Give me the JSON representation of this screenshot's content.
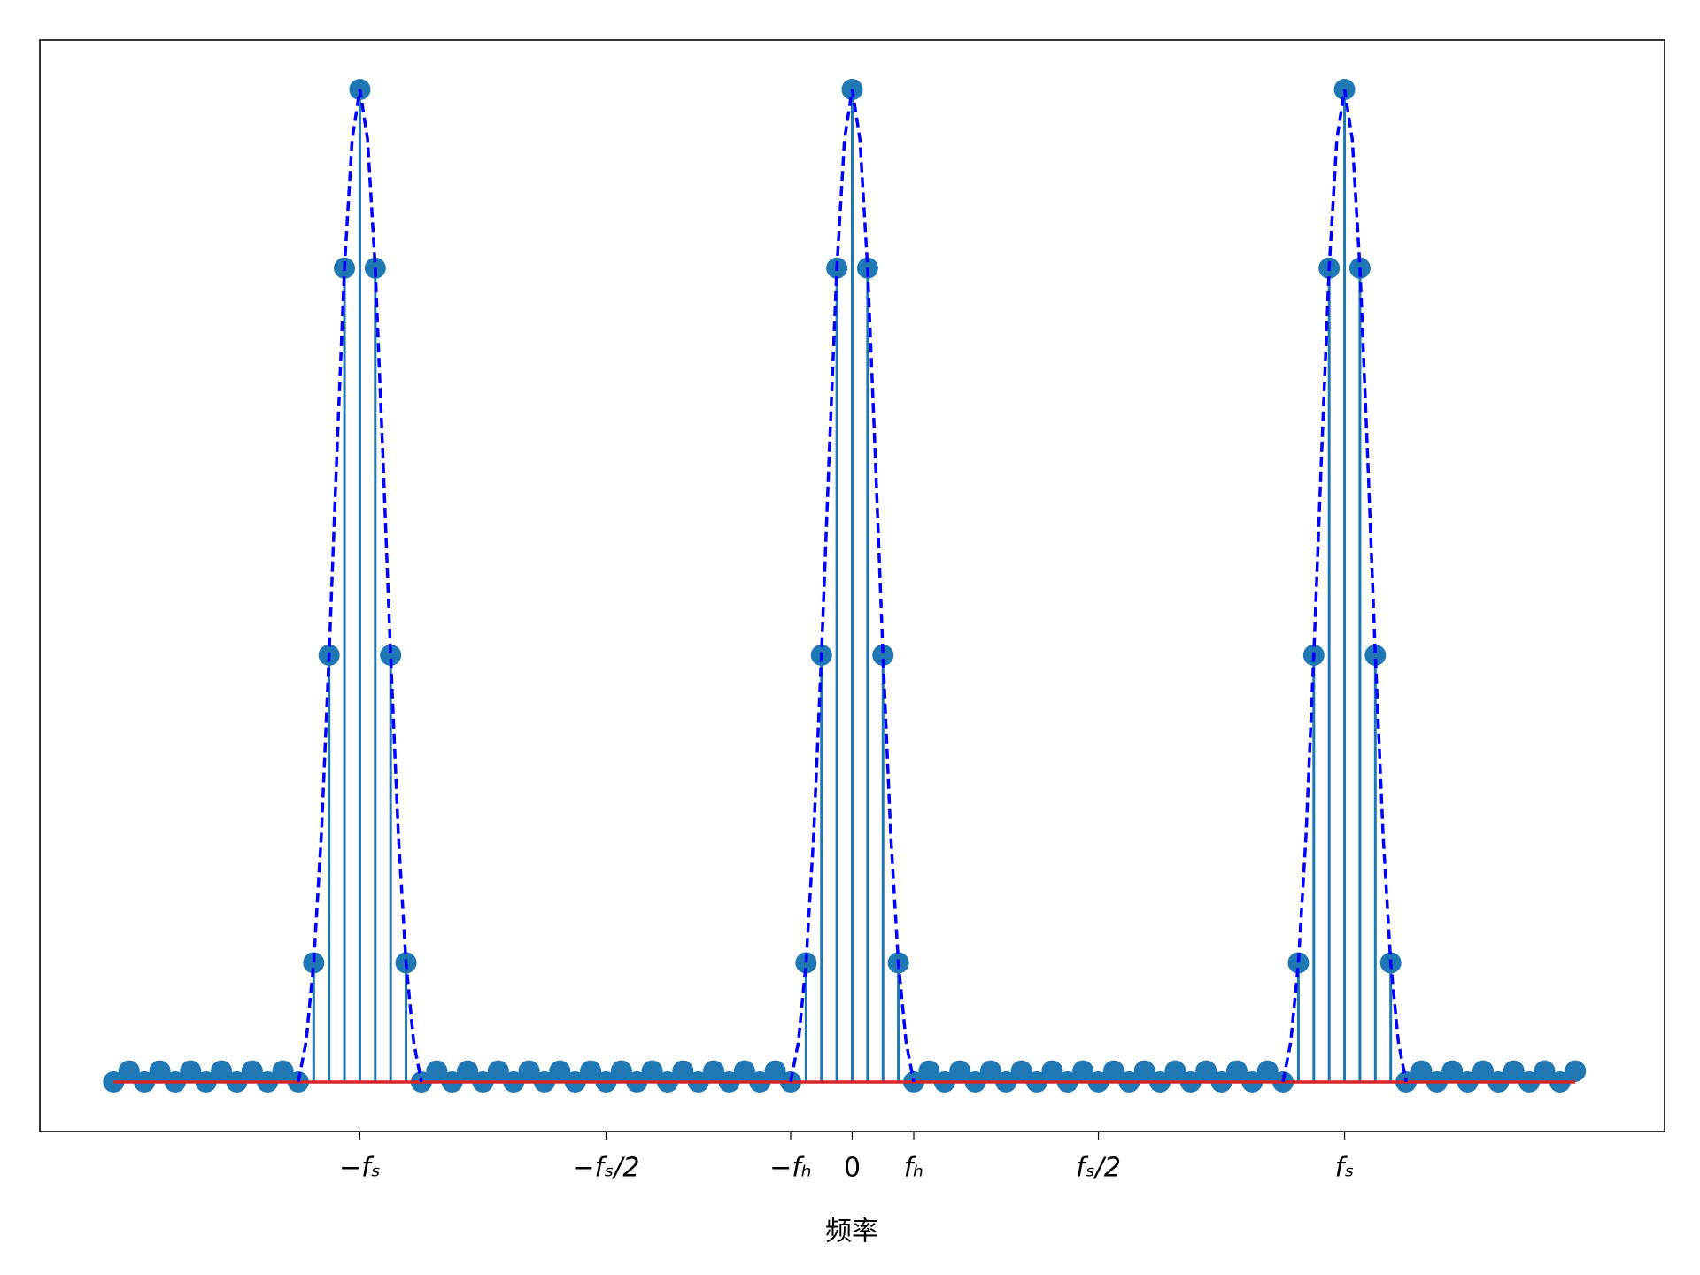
{
  "chart_data": {
    "type": "stem",
    "xlabel": "频率",
    "stems": {
      "color": "#1f77b4",
      "baseline_color": "#d62728",
      "x": [
        -48,
        -47,
        -46,
        -45,
        -44,
        -43,
        -42,
        -41,
        -40,
        -39,
        -38,
        -37,
        -36,
        -35,
        -34,
        -33,
        -32,
        -31,
        -30,
        -29,
        -28,
        -27,
        -26,
        -25,
        -24,
        -23,
        -22,
        -21,
        -20,
        -19,
        -18,
        -17,
        -16,
        -15,
        -14,
        -13,
        -12,
        -11,
        -10,
        -9,
        -8,
        -7,
        -6,
        -5,
        -4,
        -3,
        -2,
        -1,
        0,
        1,
        2,
        3,
        4,
        5,
        6,
        7,
        8,
        9,
        10,
        11,
        12,
        13,
        14,
        15,
        16,
        17,
        18,
        19,
        20,
        21,
        22,
        23,
        24,
        25,
        26,
        27,
        28,
        29,
        30,
        31,
        32,
        33,
        34,
        35,
        36,
        37,
        38,
        39,
        40,
        41,
        42,
        43,
        44,
        45,
        46,
        47
      ],
      "values": [
        0,
        0.011,
        0,
        0.011,
        0,
        0.011,
        0,
        0.011,
        0,
        0.011,
        0,
        0.011,
        0,
        0.12,
        0.43,
        0.82,
        1,
        0.82,
        0.43,
        0.12,
        0,
        0.011,
        0,
        0.011,
        0,
        0.011,
        0,
        0.011,
        0,
        0.011,
        0,
        0.011,
        0,
        0.011,
        0,
        0.011,
        0,
        0.011,
        0,
        0.011,
        0,
        0.011,
        0,
        0.011,
        0,
        0.12,
        0.43,
        0.82,
        1,
        0.82,
        0.43,
        0.12,
        0,
        0.011,
        0,
        0.011,
        0,
        0.011,
        0,
        0.011,
        0,
        0.011,
        0,
        0.011,
        0,
        0.011,
        0,
        0.011,
        0,
        0.011,
        0,
        0.011,
        0,
        0.011,
        0,
        0.011,
        0,
        0.12,
        0.43,
        0.82,
        1,
        0.82,
        0.43,
        0.12,
        0,
        0.011,
        0,
        0.011,
        0,
        0.011,
        0,
        0.011,
        0,
        0.011,
        0,
        0.011
      ]
    },
    "curve": {
      "color": "#0000ff",
      "dashed": true,
      "x": [
        -36,
        -35.5,
        -35,
        -34.5,
        -34,
        -33.5,
        -33,
        -32.5,
        -32,
        -31.5,
        -31,
        -30.5,
        -30,
        -29.5,
        -29,
        -28.5,
        -28,
        null,
        -4,
        -3.5,
        -3,
        -2.5,
        -2,
        -1.5,
        -1,
        -0.5,
        0,
        0.5,
        1,
        1.5,
        2,
        2.5,
        3,
        3.5,
        4,
        null,
        28,
        28.5,
        29,
        29.5,
        30,
        30.5,
        31,
        31.5,
        32,
        32.5,
        33,
        33.5,
        34,
        34.5,
        35,
        35.5,
        36
      ],
      "values": [
        0,
        0.04,
        0.12,
        0.25,
        0.43,
        0.63,
        0.82,
        0.95,
        1,
        0.95,
        0.82,
        0.63,
        0.43,
        0.25,
        0.12,
        0.04,
        0,
        null,
        0,
        0.04,
        0.12,
        0.25,
        0.43,
        0.63,
        0.82,
        0.95,
        1,
        0.95,
        0.82,
        0.63,
        0.43,
        0.25,
        0.12,
        0.04,
        0,
        null,
        0,
        0.04,
        0.12,
        0.25,
        0.43,
        0.63,
        0.82,
        0.95,
        1,
        0.95,
        0.82,
        0.63,
        0.43,
        0.25,
        0.12,
        0.04,
        0
      ]
    },
    "xlim": [
      -52.8,
      52.8
    ],
    "ylim": [
      -0.05,
      1.05
    ],
    "xticks": [
      {
        "value": -32,
        "label": "−fₛ"
      },
      {
        "value": -16,
        "label": "−fₛ/2"
      },
      {
        "value": -4,
        "label": "−fₕ"
      },
      0,
      {
        "value": 4,
        "label": "fₕ"
      },
      {
        "value": 16,
        "label": "fₛ/2"
      },
      {
        "value": 32,
        "label": "fₛ"
      }
    ],
    "grid": false
  }
}
